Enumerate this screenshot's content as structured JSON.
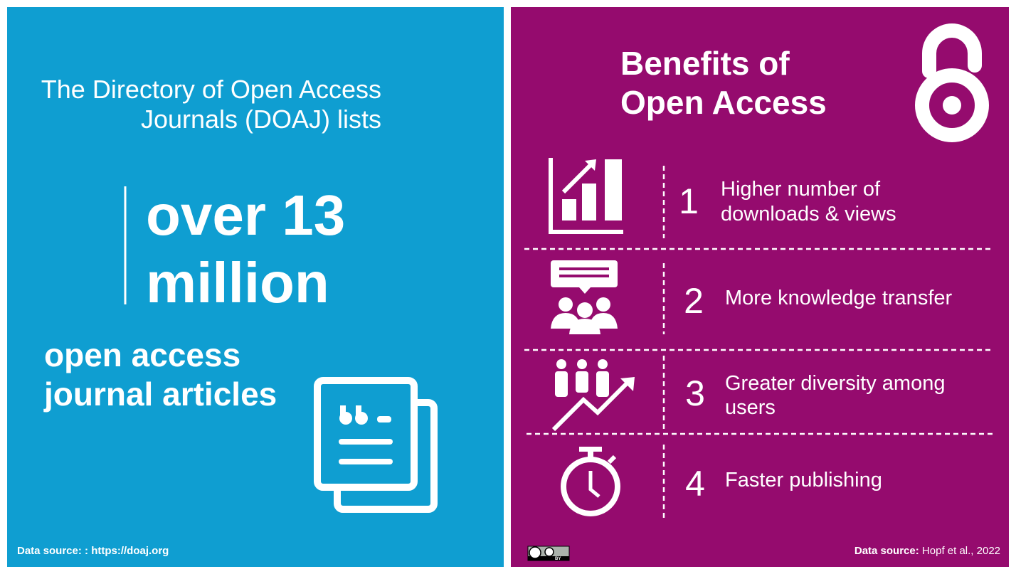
{
  "left": {
    "intro": [
      "The Directory of Open Access",
      "Journals (DOAJ) lists"
    ],
    "highlight": [
      "over 13",
      "million"
    ],
    "subject": [
      "open access",
      "journal articles"
    ],
    "source": "Data source: : https://doaj.org"
  },
  "right": {
    "title": [
      "Benefits of",
      "Open Access"
    ],
    "benefits": [
      {
        "number": "1",
        "text": [
          "Higher number of",
          "downloads & views"
        ]
      },
      {
        "number": "2",
        "text": [
          "More knowledge transfer"
        ]
      },
      {
        "number": "3",
        "text": [
          "Greater diversity among",
          "users"
        ]
      },
      {
        "number": "4",
        "text": [
          "Faster publishing"
        ]
      }
    ],
    "source_label": "Data source:",
    "source": "Hopf et al., 2022",
    "license": "BY"
  }
}
